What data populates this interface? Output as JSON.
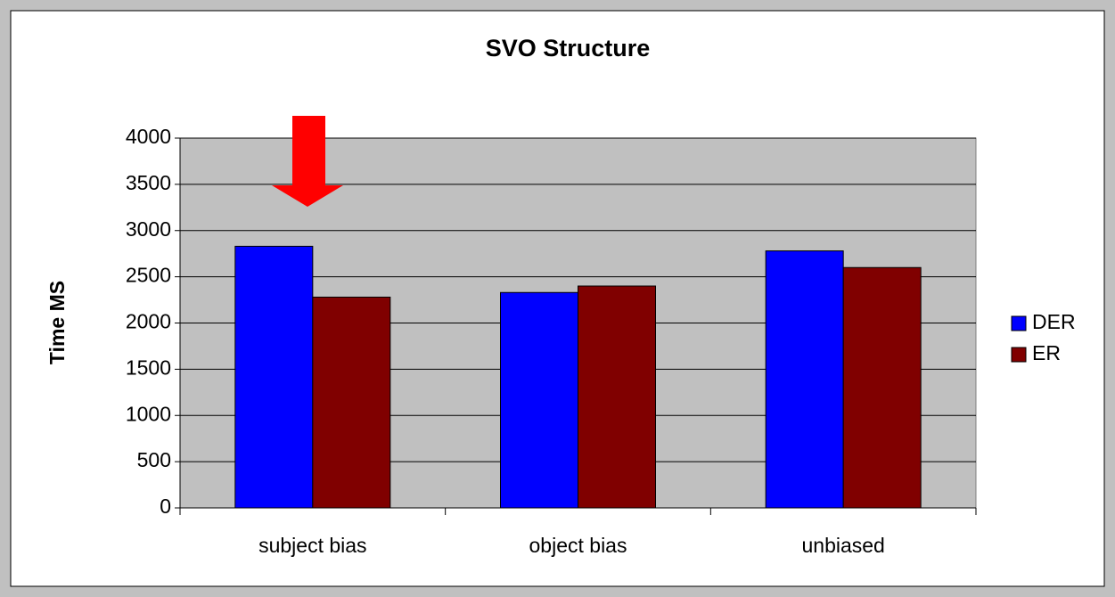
{
  "chart_data": {
    "type": "bar",
    "title": "SVO Structure",
    "y_label": "Time MS",
    "categories": [
      "subject bias",
      "object bias",
      "unbiased"
    ],
    "series": [
      {
        "name": "DER",
        "color": "#0000ff",
        "values": [
          2830,
          2330,
          2780
        ]
      },
      {
        "name": "ER",
        "color": "#800000",
        "values": [
          2280,
          2400,
          2600
        ]
      }
    ],
    "ylim": [
      0,
      4000
    ],
    "yticks": [
      0,
      500,
      1000,
      1500,
      2000,
      2500,
      3000,
      3500,
      4000
    ],
    "grid": true,
    "legend": "right",
    "plot_background": "#c0c0c0"
  }
}
